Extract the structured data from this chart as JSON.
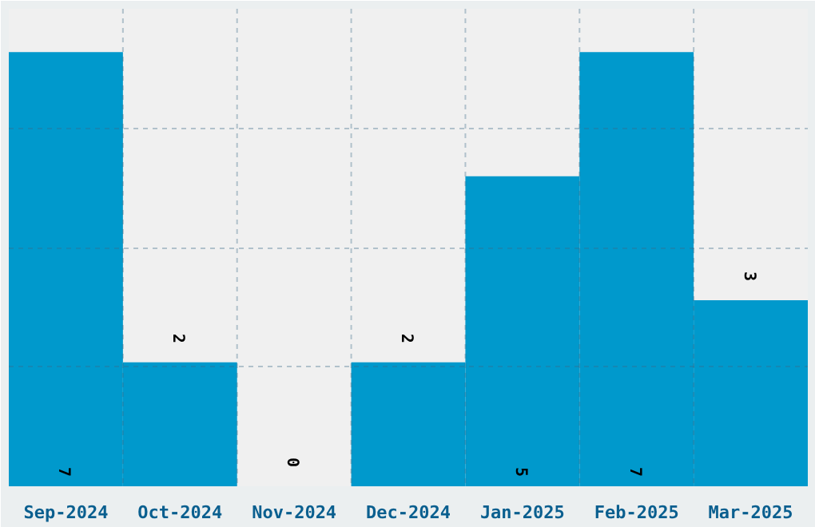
{
  "chart_data": {
    "type": "bar",
    "categories": [
      "Sep-2024",
      "Oct-2024",
      "Nov-2024",
      "Dec-2024",
      "Jan-2025",
      "Feb-2025",
      "Mar-2025"
    ],
    "values": [
      7,
      2,
      0,
      2,
      5,
      7,
      3
    ],
    "color": "#0099cc",
    "ylim": [
      0,
      7.7
    ],
    "yticks": [
      {
        "value": 0,
        "label": null
      },
      {
        "value": 1.925,
        "label": null
      },
      {
        "value": 3.85,
        "label": null
      },
      {
        "value": 5.775,
        "label": null
      },
      {
        "value": 7.7,
        "label": null
      }
    ],
    "grid": true,
    "tick_labels": "x",
    "data_labels": true
  }
}
